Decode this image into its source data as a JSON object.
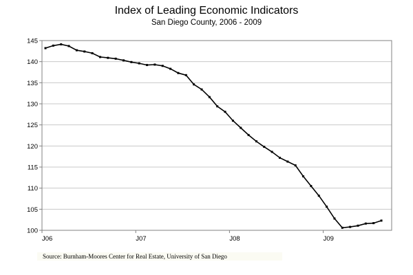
{
  "chart_data": {
    "type": "line",
    "title": "Index of Leading Economic Indicators",
    "subtitle": "San Diego County, 2006 - 2009",
    "xlabel": "",
    "ylabel": "",
    "x_tick_labels": [
      "J06",
      "J07",
      "J08",
      "J09"
    ],
    "y_ticks": [
      100,
      105,
      110,
      115,
      120,
      125,
      130,
      135,
      140,
      145
    ],
    "ylim": [
      100,
      145
    ],
    "grid": "horizontal",
    "legend": "none",
    "series": [
      {
        "values": [
          143.2,
          143.8,
          144.1,
          143.7,
          142.7,
          142.4,
          142.0,
          141.1,
          140.9,
          140.7,
          140.3,
          139.9,
          139.6,
          139.2,
          139.3,
          139.0,
          138.3,
          137.3,
          136.8,
          134.6,
          133.4,
          131.6,
          129.4,
          128.1,
          126.0,
          124.3,
          122.6,
          121.1,
          119.8,
          118.6,
          117.2,
          116.3,
          115.4,
          112.8,
          110.5,
          108.2,
          105.6,
          102.8,
          100.6,
          100.8,
          101.1,
          101.6,
          101.7,
          102.3
        ]
      }
    ],
    "line_color": "#000000"
  },
  "source": "Source:  Burnham-Moores Center for Real Estate, University of San Diego"
}
